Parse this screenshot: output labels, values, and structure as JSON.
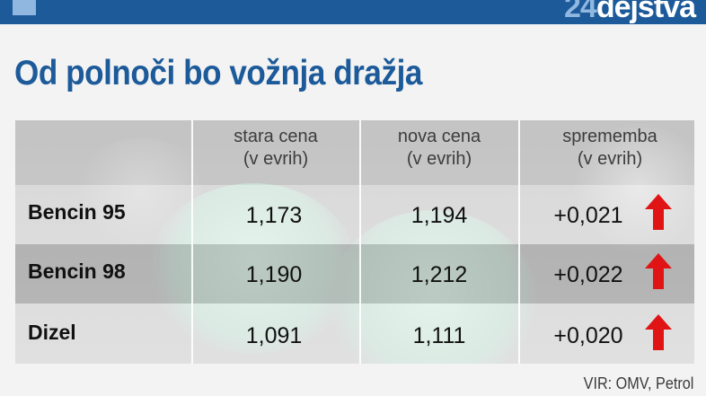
{
  "brand": {
    "number": "24",
    "word": "dejstva"
  },
  "headline": "Od polnoči bo vožnja dražja",
  "columns": [
    {
      "line1": "stara cena",
      "line2": "(v evrih)"
    },
    {
      "line1": "nova cena",
      "line2": "(v evrih)"
    },
    {
      "line1": "sprememba",
      "line2": "(v evrih)"
    }
  ],
  "rows": [
    {
      "fuel": "Bencin 95",
      "old_price": "1,173",
      "new_price": "1,194",
      "change": "+0,021",
      "trend_icon": "arrow-up-icon"
    },
    {
      "fuel": "Bencin 98",
      "old_price": "1,190",
      "new_price": "1,212",
      "change": "+0,022",
      "trend_icon": "arrow-up-icon"
    },
    {
      "fuel": "Dizel",
      "old_price": "1,091",
      "new_price": "1,111",
      "change": "+0,020",
      "trend_icon": "arrow-up-icon"
    }
  ],
  "source": "VIR: OMV, Petrol",
  "colors": {
    "brand_blue": "#1c5a9a",
    "brand_light": "#8fb7df",
    "arrow_red": "#e01414"
  }
}
